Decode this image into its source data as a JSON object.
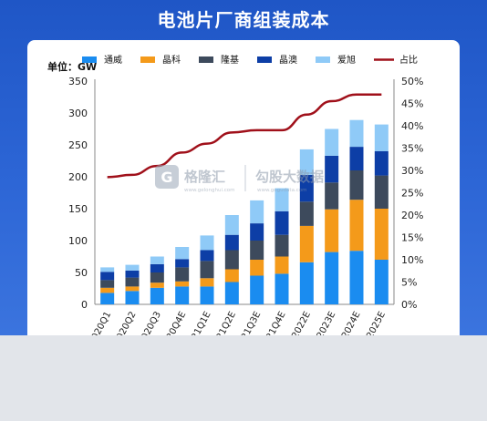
{
  "page": {
    "title": "电池片厂商组装成本"
  },
  "watermark": {
    "brand1": "格隆汇",
    "brand1_url": "www.gelonghui.com",
    "brand2": "勾股大数据",
    "brand2_url": "www.gogudata.com"
  },
  "chart_data": {
    "type": "bar",
    "stacked": true,
    "unit_label": "单位：GW",
    "categories": [
      "2020Q1",
      "2020Q2",
      "2020Q3",
      "2020Q4E",
      "2021Q1E",
      "2021Q2E",
      "2021Q3E",
      "2021Q4E",
      "2022E",
      "2023E",
      "2024E",
      "2025E"
    ],
    "category_labels": [
      "2020Q1",
      "2020Q2",
      "2020Q3",
      "2020Q4E",
      "2021Q1E",
      "2021Q2E",
      "2021Q3E",
      "2021Q4E",
      "2022E",
      "2023E",
      "2024E",
      "2025E"
    ],
    "series": [
      {
        "name": "通威",
        "color": "#1a8cf0",
        "values": [
          18,
          21,
          26,
          28,
          28,
          35,
          45,
          48,
          66,
          82,
          84,
          70
        ]
      },
      {
        "name": "晶科",
        "color": "#f49a1a",
        "values": [
          8,
          7,
          8,
          8,
          13,
          20,
          25,
          27,
          57,
          67,
          80,
          80
        ]
      },
      {
        "name": "隆基",
        "color": "#3d4a5c",
        "values": [
          12,
          14,
          16,
          22,
          27,
          30,
          30,
          34,
          38,
          42,
          46,
          52
        ]
      },
      {
        "name": "晶澳",
        "color": "#0d3ea6",
        "values": [
          13,
          11,
          13,
          13,
          17,
          24,
          27,
          37,
          42,
          42,
          37,
          38
        ]
      },
      {
        "name": "爱旭",
        "color": "#8fcaf7",
        "values": [
          7,
          9,
          12,
          19,
          23,
          31,
          36,
          36,
          40,
          42,
          42,
          42
        ]
      }
    ],
    "line": {
      "name": "占比",
      "color": "#a0101a",
      "values": [
        0.285,
        0.29,
        0.31,
        0.34,
        0.36,
        0.385,
        0.39,
        0.39,
        0.425,
        0.455,
        0.47,
        0.47
      ]
    },
    "y_left": {
      "min": 0,
      "max": 350,
      "ticks": [
        "0",
        "50",
        "100",
        "150",
        "200",
        "250",
        "300",
        "350"
      ]
    },
    "y_right": {
      "min": 0,
      "max": 0.5,
      "ticks": [
        "0%",
        "5%",
        "10%",
        "15%",
        "20%",
        "25%",
        "30%",
        "35%",
        "40%",
        "45%",
        "50%"
      ]
    },
    "grid": false,
    "legend_position": "top"
  }
}
